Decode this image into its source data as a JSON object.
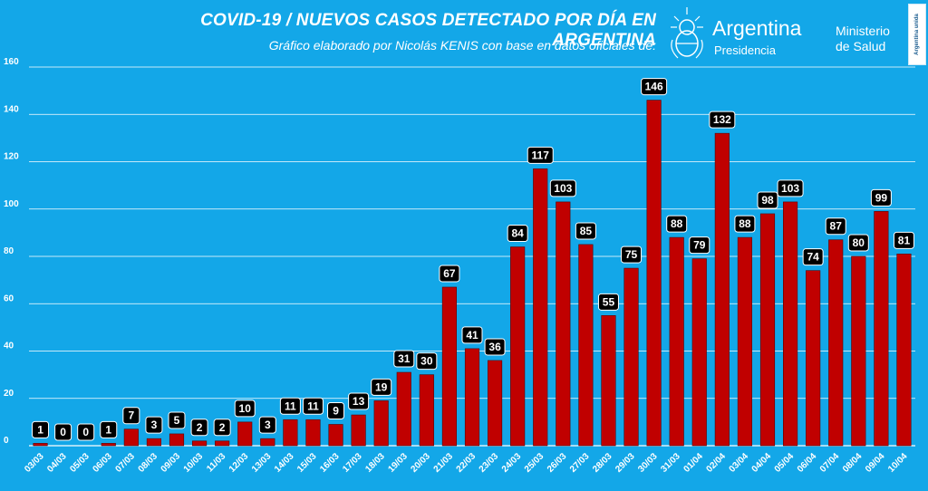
{
  "header": {
    "title": "COVID-19  /  NUEVOS CASOS DETECTADO POR DÍA EN ARGENTINA",
    "subtitle": "Gráfico elaborado por Nicolás KENIS con base en datos oficiales de:"
  },
  "logos": {
    "brand_name": "Argentina",
    "brand_sub": "Presidencia",
    "ministry_line1": "Ministerio",
    "ministry_line2": "de Salud",
    "unida": "Argentina unida"
  },
  "colors": {
    "background": "#13a7e8",
    "bar": "#c00000",
    "label_bg": "#000000",
    "grid": "#ffffff"
  },
  "chart_data": {
    "type": "bar",
    "title": "COVID-19  /  NUEVOS CASOS DETECTADO POR DÍA EN ARGENTINA",
    "xlabel": "",
    "ylabel": "",
    "ylim": [
      0,
      160
    ],
    "yticks": [
      0,
      20,
      40,
      60,
      80,
      100,
      120,
      140,
      160
    ],
    "grid": true,
    "legend": "none",
    "categories": [
      "03/03",
      "04/03",
      "05/03",
      "06/03",
      "07/03",
      "08/03",
      "09/03",
      "10/03",
      "11/03",
      "12/03",
      "13/03",
      "14/03",
      "15/03",
      "16/03",
      "17/03",
      "18/03",
      "19/03",
      "20/03",
      "21/03",
      "22/03",
      "23/03",
      "24/03",
      "25/03",
      "26/03",
      "27/03",
      "28/03",
      "29/03",
      "30/03",
      "31/03",
      "01/04",
      "02/04",
      "03/04",
      "04/04",
      "05/04",
      "06/04",
      "07/04",
      "08/04",
      "09/04",
      "10/04"
    ],
    "values": [
      1,
      0,
      0,
      1,
      7,
      3,
      5,
      2,
      2,
      10,
      3,
      11,
      11,
      9,
      13,
      19,
      31,
      30,
      67,
      41,
      36,
      84,
      117,
      103,
      85,
      55,
      75,
      146,
      88,
      79,
      132,
      88,
      98,
      103,
      74,
      87,
      80,
      99,
      81
    ]
  }
}
